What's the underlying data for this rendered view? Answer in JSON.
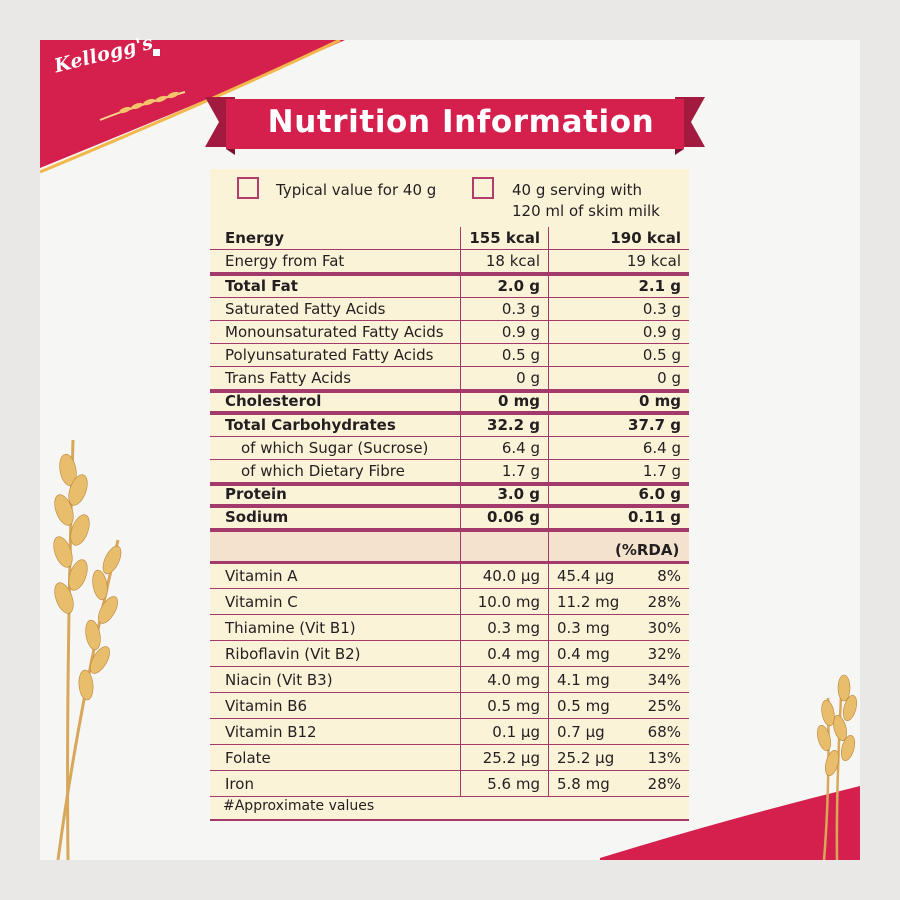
{
  "brand": {
    "logo_text": "Kellogg's"
  },
  "colors": {
    "brand_red": "#d51f4d",
    "panel": "#faf3d8",
    "rule": "#a43a6c"
  },
  "title": "Nutrition Information",
  "columns": {
    "col1": "Typical value for 40 g",
    "col2_line1": "40 g serving with",
    "col2_line2": "120 ml of skim milk"
  },
  "nutrients": [
    {
      "label": "Energy",
      "v1": "155 kcal",
      "v2": "190 kcal"
    },
    {
      "label": "Energy from Fat",
      "v1": "18 kcal",
      "v2": "19 kcal"
    },
    {
      "label": "Total Fat",
      "v1": "2.0 g",
      "v2": "2.1 g"
    },
    {
      "label": "Saturated Fatty Acids",
      "v1": "0.3 g",
      "v2": "0.3 g"
    },
    {
      "label": "Monounsaturated Fatty Acids",
      "v1": "0.9 g",
      "v2": "0.9 g"
    },
    {
      "label": "Polyunsaturated Fatty Acids",
      "v1": "0.5 g",
      "v2": "0.5 g"
    },
    {
      "label": "Trans Fatty Acids",
      "v1": "0 g",
      "v2": "0 g"
    },
    {
      "label": "Cholesterol",
      "v1": "0 mg",
      "v2": "0 mg"
    },
    {
      "label": "Total Carbohydrates",
      "v1": "32.2 g",
      "v2": "37.7 g"
    },
    {
      "label": "of which Sugar (Sucrose)",
      "v1": "6.4 g",
      "v2": "6.4 g"
    },
    {
      "label": "of which Dietary Fibre",
      "v1": "1.7 g",
      "v2": "1.7 g"
    },
    {
      "label": "Protein",
      "v1": "3.0 g",
      "v2": "6.0 g"
    },
    {
      "label": "Sodium",
      "v1": "0.06 g",
      "v2": "0.11 g"
    }
  ],
  "rda_header": "(%RDA)",
  "vitamins": [
    {
      "label": "Vitamin A",
      "v1": "40.0 µg",
      "v2": "45.4 µg",
      "pct": "8%"
    },
    {
      "label": "Vitamin C",
      "v1": "10.0 mg",
      "v2": "11.2 mg",
      "pct": "28%"
    },
    {
      "label": "Thiamine (Vit B1)",
      "v1": "0.3 mg",
      "v2": "0.3 mg",
      "pct": "30%"
    },
    {
      "label": "Riboflavin (Vit B2)",
      "v1": "0.4 mg",
      "v2": "0.4 mg",
      "pct": "32%"
    },
    {
      "label": "Niacin (Vit B3)",
      "v1": "4.0 mg",
      "v2": "4.1 mg",
      "pct": "34%"
    },
    {
      "label": "Vitamin B6",
      "v1": "0.5 mg",
      "v2": "0.5 mg",
      "pct": "25%"
    },
    {
      "label": "Vitamin B12",
      "v1": "0.1 µg",
      "v2": "0.7 µg",
      "pct": "68%"
    },
    {
      "label": "Folate",
      "v1": "25.2 µg",
      "v2": "25.2 µg",
      "pct": "13%"
    },
    {
      "label": "Iron",
      "v1": "5.6 mg",
      "v2": "5.8 mg",
      "pct": "28%"
    }
  ],
  "footnote": "#Approximate values"
}
